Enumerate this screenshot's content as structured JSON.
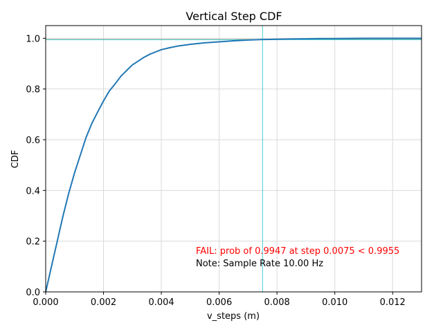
{
  "chart_data": {
    "type": "line",
    "title": "Vertical Step CDF",
    "xlabel": "v_steps (m)",
    "ylabel": "CDF",
    "xlim": [
      0,
      0.013
    ],
    "ylim": [
      0,
      1.05
    ],
    "x_ticks": [
      0,
      0.002,
      0.004,
      0.006,
      0.008,
      0.01,
      0.012
    ],
    "x_tick_labels": [
      "0.000",
      "0.002",
      "0.004",
      "0.006",
      "0.008",
      "0.010",
      "0.012"
    ],
    "y_ticks": [
      0,
      0.2,
      0.4,
      0.6,
      0.8,
      1.0
    ],
    "y_tick_labels": [
      "0.0",
      "0.2",
      "0.4",
      "0.6",
      "0.8",
      "1.0"
    ],
    "grid": true,
    "series": [
      {
        "color": "#1f77b4",
        "x": [
          0,
          0.0002,
          0.0004,
          0.0006,
          0.0008,
          0.001,
          0.0012,
          0.0014,
          0.0016,
          0.0018,
          0.002,
          0.0022,
          0.0024,
          0.0026,
          0.0028,
          0.003,
          0.0032,
          0.0034,
          0.0036,
          0.0038,
          0.004,
          0.0043,
          0.0046,
          0.005,
          0.0055,
          0.006,
          0.0065,
          0.007,
          0.0075,
          0.008,
          0.0085,
          0.009,
          0.0095,
          0.01,
          0.011,
          0.012,
          0.013
        ],
        "y": [
          0,
          0.1,
          0.2,
          0.3,
          0.39,
          0.47,
          0.54,
          0.61,
          0.665,
          0.71,
          0.753,
          0.792,
          0.82,
          0.85,
          0.873,
          0.895,
          0.91,
          0.925,
          0.937,
          0.946,
          0.955,
          0.963,
          0.97,
          0.976,
          0.982,
          0.986,
          0.99,
          0.993,
          0.995,
          0.996,
          0.997,
          0.998,
          0.999,
          0.999,
          1.0,
          1.0,
          1.0
        ]
      }
    ],
    "reference_lines": [
      {
        "orientation": "horizontal",
        "value": 0.9955,
        "color": "#ff7f0e"
      },
      {
        "orientation": "horizontal",
        "value": 0.9947,
        "color": "#17becf"
      },
      {
        "orientation": "vertical",
        "value": 0.0075,
        "color": "#17becf"
      }
    ],
    "annotations": [
      {
        "text": "FAIL: prob of 0.9947 at step 0.0075 < 0.9955",
        "color": "#ff0000"
      },
      {
        "text": "Note: Sample Rate 10.00 Hz",
        "color": "#000000"
      }
    ]
  }
}
